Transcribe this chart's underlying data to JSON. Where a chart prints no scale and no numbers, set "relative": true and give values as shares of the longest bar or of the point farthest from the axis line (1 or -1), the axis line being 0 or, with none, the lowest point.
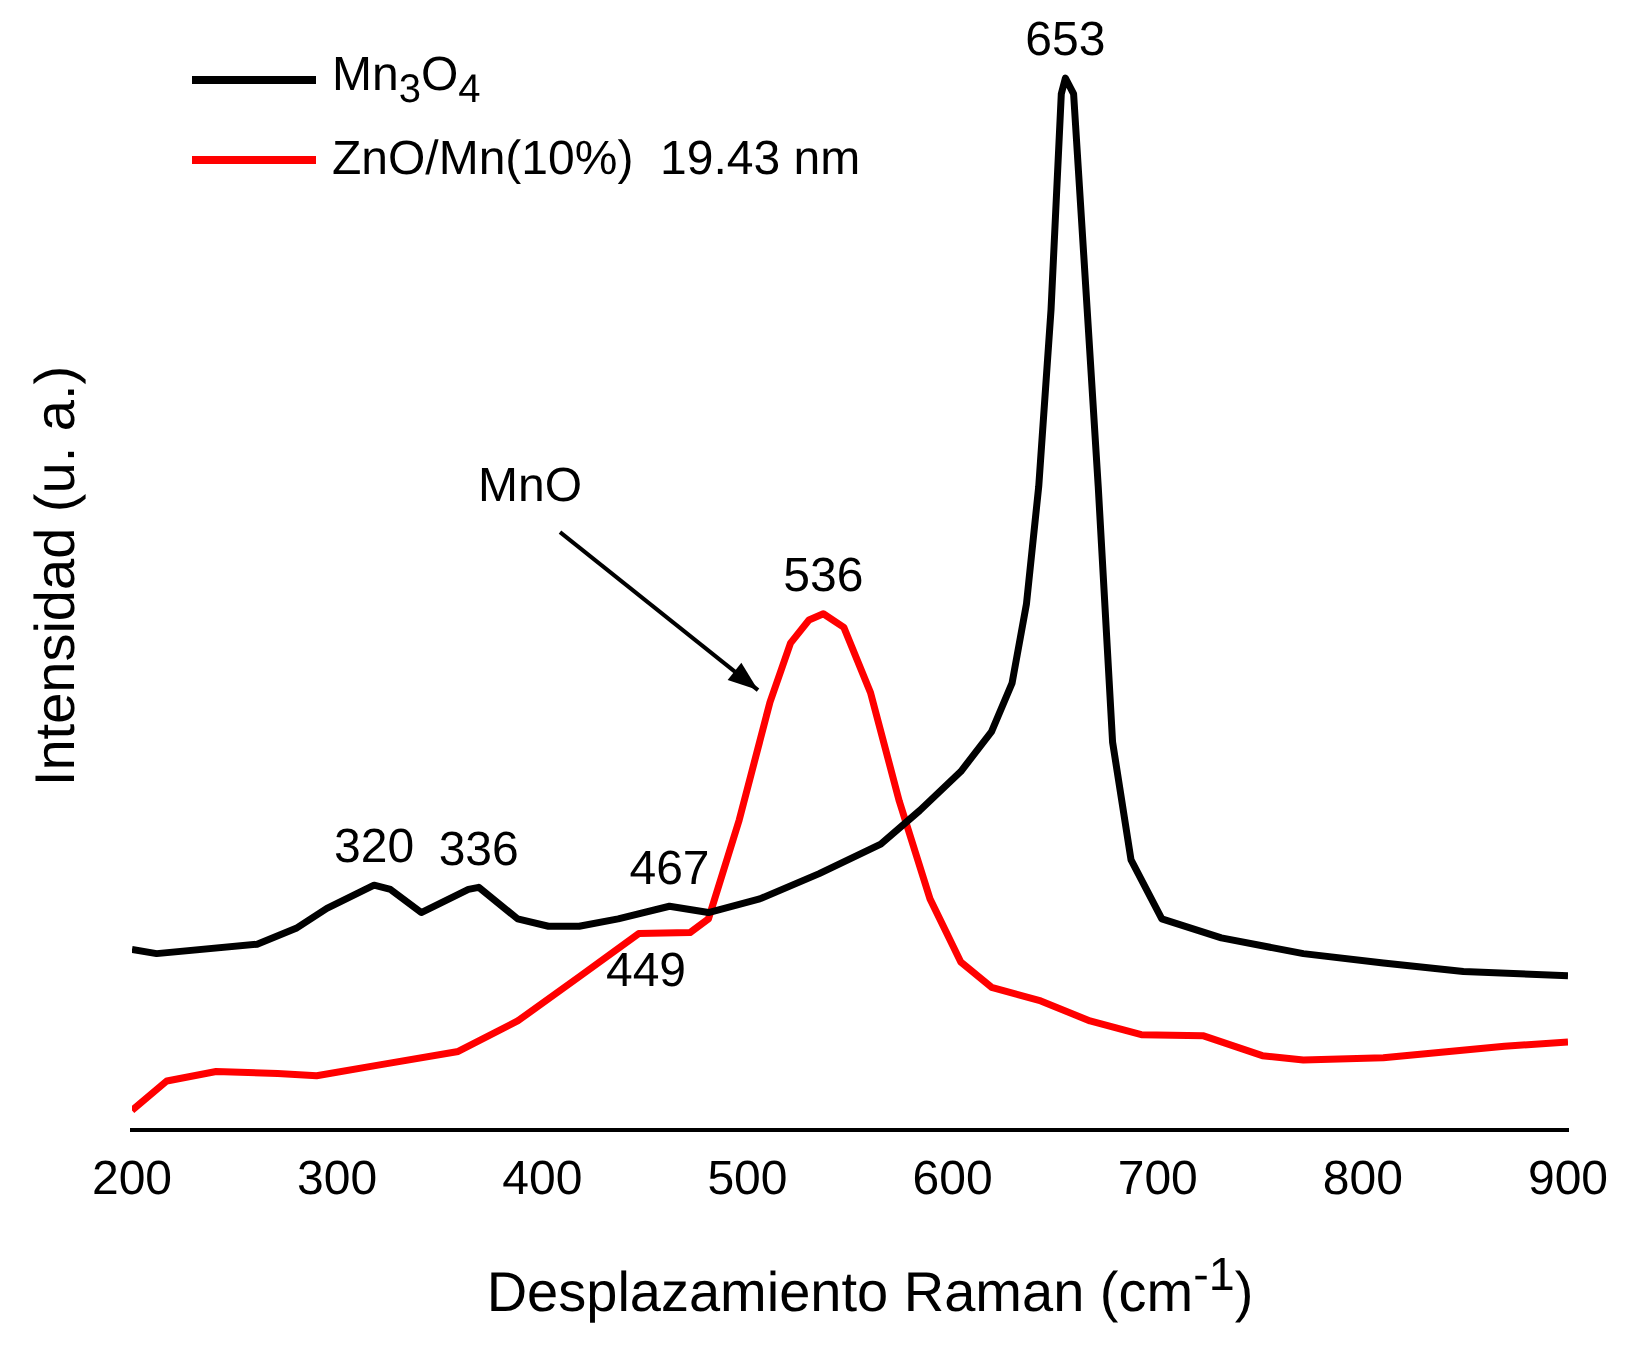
{
  "chart_data": {
    "type": "line",
    "relative": true,
    "xlabel": "Desplazamiento Raman (cm$^{-1}$)",
    "ylabel": "Intensidad (u. a.)",
    "xlim": [
      200,
      900
    ],
    "xticks": [
      200,
      300,
      400,
      500,
      600,
      700,
      800,
      900
    ],
    "legend": "top left",
    "grid": false,
    "tick_labels": "x",
    "line_style": "solid",
    "marker": "none",
    "series": [
      {
        "name": "Mn$_{3}$O$_{4}$",
        "color": "#000000",
        "x": [
          200,
          212,
          261,
          280,
          295,
          318,
          326,
          341,
          364,
          369,
          388,
          403,
          418,
          437,
          462,
          481,
          506,
          535,
          565,
          584,
          604,
          619,
          629,
          636,
          642,
          648,
          653,
          655,
          659,
          665,
          671,
          678,
          687,
          702,
          731,
          771,
          810,
          849,
          900
        ],
        "values": [
          0.172,
          0.168,
          0.177,
          0.192,
          0.211,
          0.233,
          0.229,
          0.207,
          0.229,
          0.231,
          0.201,
          0.194,
          0.194,
          0.201,
          0.213,
          0.207,
          0.22,
          0.244,
          0.272,
          0.304,
          0.341,
          0.379,
          0.425,
          0.5,
          0.612,
          0.78,
          0.985,
          1,
          0.985,
          0.799,
          0.612,
          0.369,
          0.257,
          0.201,
          0.183,
          0.168,
          0.159,
          0.151,
          0.147
        ]
      },
      {
        "name": "ZnO/Mn(10%)  19.43 nm",
        "color": "#ff0000",
        "x": [
          200,
          217,
          241,
          271,
          290,
          320,
          359,
          388,
          418,
          447,
          472,
          481,
          496,
          511,
          521,
          530,
          537,
          547,
          560,
          574,
          589,
          604,
          619,
          643,
          667,
          692,
          722,
          751,
          771,
          810,
          869,
          900
        ],
        "values": [
          0.019,
          0.047,
          0.056,
          0.054,
          0.052,
          0.062,
          0.075,
          0.104,
          0.146,
          0.187,
          0.188,
          0.201,
          0.295,
          0.407,
          0.463,
          0.485,
          0.491,
          0.478,
          0.416,
          0.313,
          0.22,
          0.16,
          0.136,
          0.123,
          0.104,
          0.091,
          0.09,
          0.071,
          0.067,
          0.069,
          0.08,
          0.084
        ]
      }
    ],
    "annotations": [
      {
        "text": "320",
        "x": 318,
        "y": 0.233
      },
      {
        "text": "336",
        "x": 369,
        "y": 0.231
      },
      {
        "text": "467",
        "x": 462,
        "y": 0.213
      },
      {
        "text": "449",
        "x": 472,
        "y": 0.188
      },
      {
        "text": "536",
        "x": 537,
        "y": 0.491
      },
      {
        "text": "653",
        "x": 655,
        "y": 1
      },
      {
        "text": "MnO",
        "x": 511,
        "y": 0.407
      }
    ]
  }
}
